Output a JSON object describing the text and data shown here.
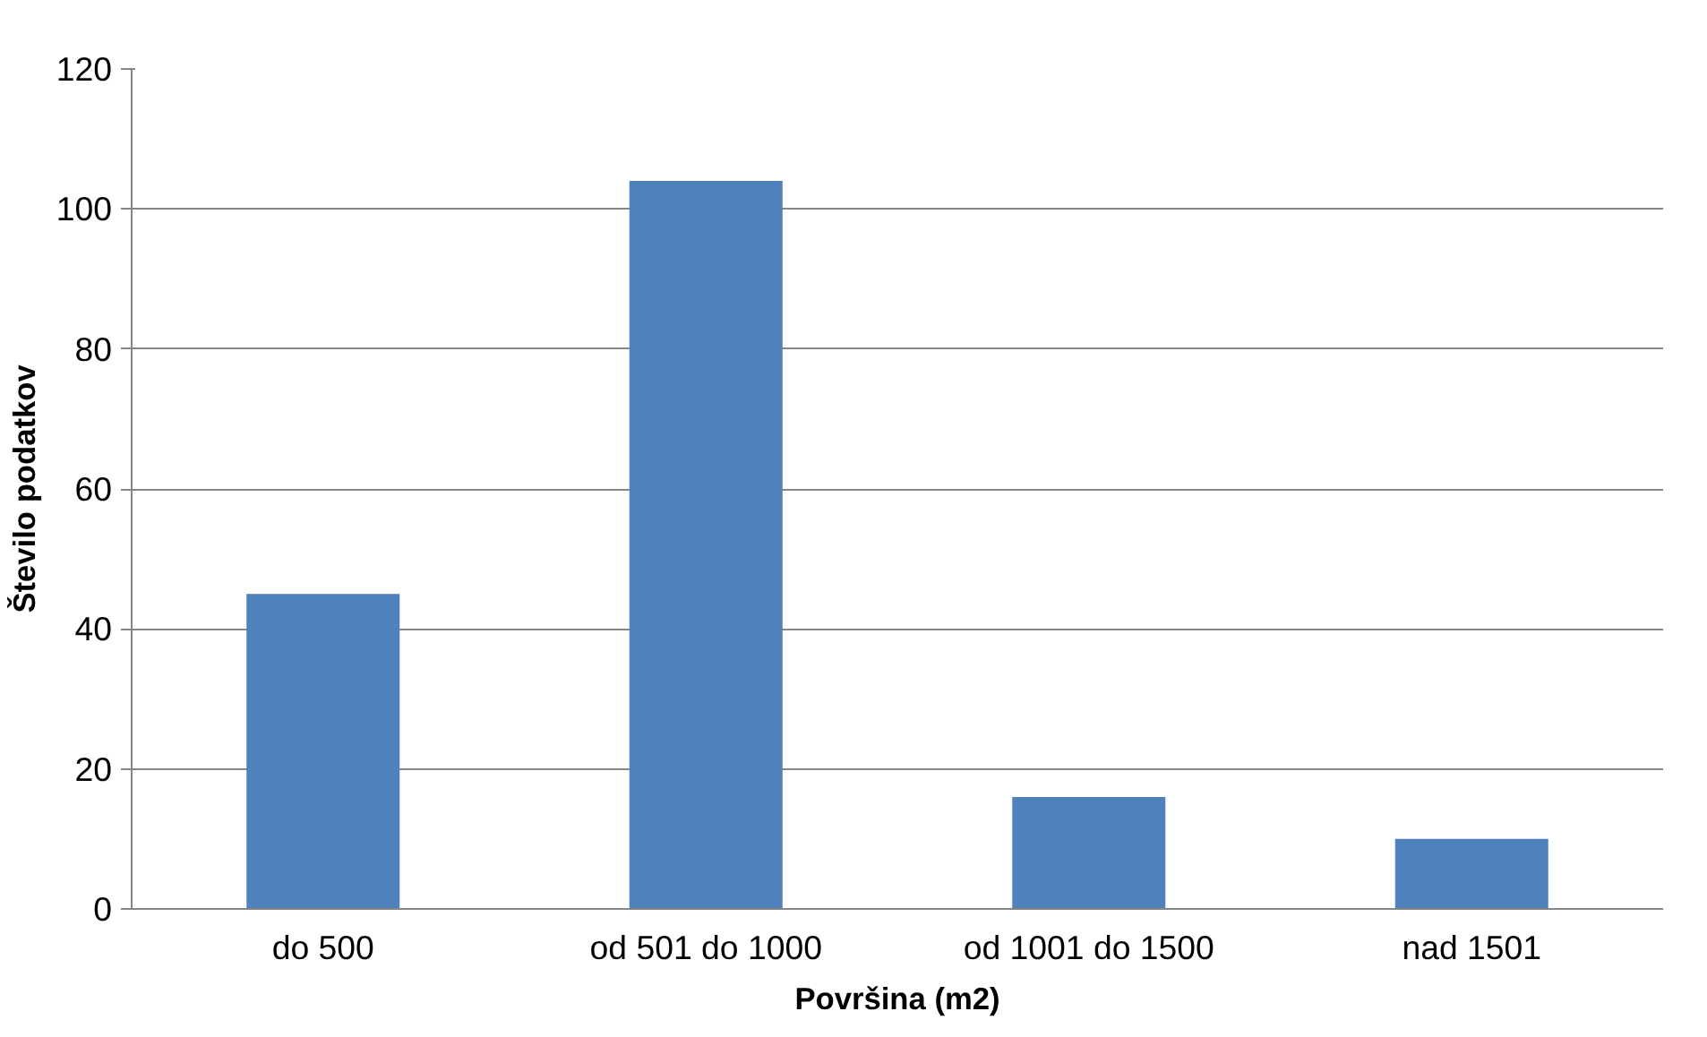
{
  "chart_data": {
    "type": "bar",
    "xlabel": "Površina (m2)",
    "ylabel": "Število podatkov",
    "categories": [
      "do 500",
      "od 501 do 1000",
      "od 1001 do 1500",
      "nad 1501"
    ],
    "values": [
      45,
      104,
      16,
      10
    ],
    "color": "#4f81bd",
    "ylim": [
      0,
      120
    ],
    "yticks": [
      0,
      20,
      40,
      60,
      80,
      100,
      120
    ],
    "grid": "y"
  }
}
